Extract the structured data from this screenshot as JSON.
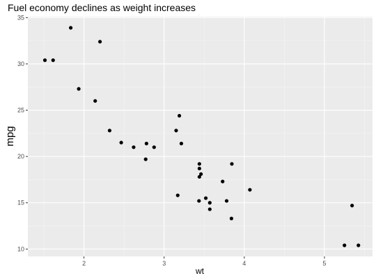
{
  "chart_data": {
    "type": "scatter",
    "title": "Fuel economy declines as weight increases",
    "xlabel": "wt",
    "ylabel": "mpg",
    "xlim": [
      1.3,
      5.6
    ],
    "ylim": [
      9.2,
      35.1
    ],
    "x_ticks": [
      2,
      3,
      4,
      5
    ],
    "y_ticks": [
      10,
      15,
      20,
      25,
      30,
      35
    ],
    "x_minor_ticks": [
      1.5,
      2.5,
      3.5,
      4.5,
      5.5
    ],
    "y_minor_ticks": [
      12.5,
      17.5,
      22.5,
      27.5,
      32.5
    ],
    "grid": true,
    "legend": "none",
    "colors": {
      "panel": "#ebebeb",
      "grid_major": "#ffffff",
      "grid_minor": "#f5f5f5",
      "point": "#000000",
      "tick_label": "#4d4d4d"
    },
    "points": [
      {
        "x": 2.62,
        "y": 21.0
      },
      {
        "x": 2.875,
        "y": 21.0
      },
      {
        "x": 2.32,
        "y": 22.8
      },
      {
        "x": 3.215,
        "y": 21.4
      },
      {
        "x": 3.44,
        "y": 18.7
      },
      {
        "x": 3.46,
        "y": 18.1
      },
      {
        "x": 3.57,
        "y": 14.3
      },
      {
        "x": 3.19,
        "y": 24.4
      },
      {
        "x": 3.15,
        "y": 22.8
      },
      {
        "x": 3.44,
        "y": 19.2
      },
      {
        "x": 3.44,
        "y": 17.8
      },
      {
        "x": 4.07,
        "y": 16.4
      },
      {
        "x": 3.73,
        "y": 17.3
      },
      {
        "x": 3.78,
        "y": 15.2
      },
      {
        "x": 5.25,
        "y": 10.4
      },
      {
        "x": 5.424,
        "y": 10.4
      },
      {
        "x": 5.345,
        "y": 14.7
      },
      {
        "x": 2.2,
        "y": 32.4
      },
      {
        "x": 1.615,
        "y": 30.4
      },
      {
        "x": 1.835,
        "y": 33.9
      },
      {
        "x": 2.465,
        "y": 21.5
      },
      {
        "x": 3.52,
        "y": 15.5
      },
      {
        "x": 3.435,
        "y": 15.2
      },
      {
        "x": 3.84,
        "y": 13.3
      },
      {
        "x": 3.845,
        "y": 19.2
      },
      {
        "x": 1.935,
        "y": 27.3
      },
      {
        "x": 2.14,
        "y": 26.0
      },
      {
        "x": 1.513,
        "y": 30.4
      },
      {
        "x": 3.17,
        "y": 15.8
      },
      {
        "x": 2.77,
        "y": 19.7
      },
      {
        "x": 3.57,
        "y": 15.0
      },
      {
        "x": 2.78,
        "y": 21.4
      }
    ]
  }
}
